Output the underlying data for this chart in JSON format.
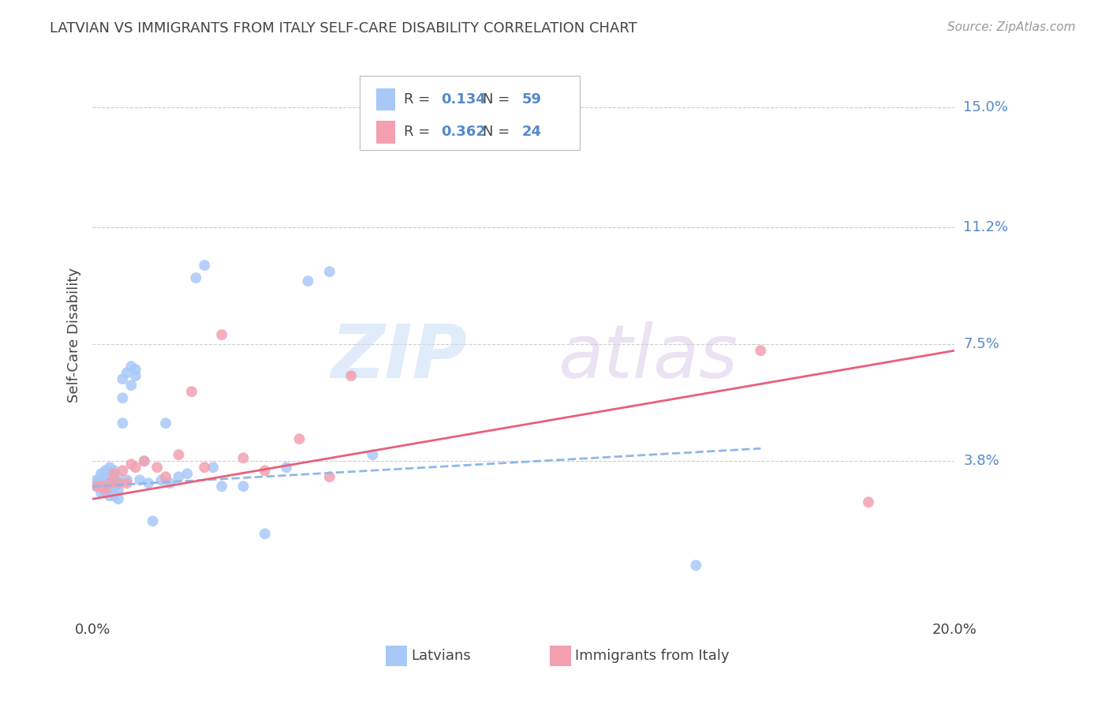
{
  "title": "LATVIAN VS IMMIGRANTS FROM ITALY SELF-CARE DISABILITY CORRELATION CHART",
  "source": "Source: ZipAtlas.com",
  "ylabel": "Self-Care Disability",
  "x_min": 0.0,
  "x_max": 0.2,
  "y_min": -0.012,
  "y_max": 0.168,
  "y_ticks": [
    0.0,
    0.038,
    0.075,
    0.112,
    0.15
  ],
  "y_tick_labels": [
    "",
    "3.8%",
    "7.5%",
    "11.2%",
    "15.0%"
  ],
  "latvians_x": [
    0.001,
    0.001,
    0.001,
    0.002,
    0.002,
    0.002,
    0.002,
    0.002,
    0.003,
    0.003,
    0.003,
    0.003,
    0.003,
    0.003,
    0.004,
    0.004,
    0.004,
    0.004,
    0.004,
    0.004,
    0.004,
    0.005,
    0.005,
    0.005,
    0.005,
    0.005,
    0.006,
    0.006,
    0.006,
    0.006,
    0.007,
    0.007,
    0.007,
    0.008,
    0.008,
    0.009,
    0.009,
    0.01,
    0.01,
    0.011,
    0.012,
    0.013,
    0.014,
    0.016,
    0.017,
    0.018,
    0.02,
    0.022,
    0.024,
    0.026,
    0.028,
    0.03,
    0.035,
    0.04,
    0.045,
    0.05,
    0.055,
    0.065,
    0.14
  ],
  "latvians_y": [
    0.03,
    0.031,
    0.032,
    0.028,
    0.03,
    0.031,
    0.033,
    0.034,
    0.028,
    0.029,
    0.03,
    0.031,
    0.033,
    0.035,
    0.027,
    0.029,
    0.03,
    0.031,
    0.032,
    0.034,
    0.036,
    0.027,
    0.028,
    0.03,
    0.032,
    0.035,
    0.026,
    0.029,
    0.031,
    0.033,
    0.05,
    0.058,
    0.064,
    0.032,
    0.066,
    0.062,
    0.068,
    0.065,
    0.067,
    0.032,
    0.038,
    0.031,
    0.019,
    0.032,
    0.05,
    0.031,
    0.033,
    0.034,
    0.096,
    0.1,
    0.036,
    0.03,
    0.03,
    0.015,
    0.036,
    0.095,
    0.098,
    0.04,
    0.005
  ],
  "immigrants_x": [
    0.001,
    0.002,
    0.003,
    0.004,
    0.005,
    0.006,
    0.007,
    0.008,
    0.009,
    0.01,
    0.012,
    0.015,
    0.017,
    0.02,
    0.023,
    0.026,
    0.03,
    0.035,
    0.04,
    0.048,
    0.055,
    0.06,
    0.155,
    0.18
  ],
  "immigrants_y": [
    0.03,
    0.03,
    0.029,
    0.031,
    0.034,
    0.031,
    0.035,
    0.031,
    0.037,
    0.036,
    0.038,
    0.036,
    0.033,
    0.04,
    0.06,
    0.036,
    0.078,
    0.039,
    0.035,
    0.045,
    0.033,
    0.065,
    0.073,
    0.025
  ],
  "latvians_line_x": [
    0.0,
    0.155
  ],
  "latvians_line_y": [
    0.03,
    0.042
  ],
  "immigrants_line_x": [
    0.0,
    0.2
  ],
  "immigrants_line_y": [
    0.026,
    0.073
  ],
  "dot_color_latvian": "#a8c8f8",
  "dot_color_immigrant": "#f4a0b0",
  "line_color_latvian": "#90b8e8",
  "line_color_immigrant": "#e8607a",
  "r_latvian": "0.134",
  "n_latvian": "59",
  "r_immigrant": "0.362",
  "n_immigrant": "24",
  "legend_labels": [
    "Latvians",
    "Immigrants from Italy"
  ],
  "watermark_zip": "ZIP",
  "watermark_atlas": "atlas",
  "background_color": "#ffffff",
  "grid_color": "#cccccc",
  "value_color": "#5588cc",
  "text_color": "#444444",
  "source_color": "#999999"
}
